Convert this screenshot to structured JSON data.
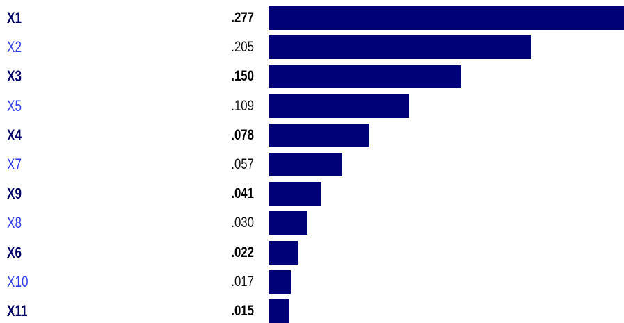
{
  "chart_data": {
    "type": "bar",
    "orientation": "horizontal",
    "categories": [
      "X1",
      "X2",
      "X3",
      "X5",
      "X4",
      "X7",
      "X9",
      "X8",
      "X6",
      "X10",
      "X11"
    ],
    "values": [
      0.277,
      0.205,
      0.15,
      0.109,
      0.078,
      0.057,
      0.041,
      0.03,
      0.022,
      0.017,
      0.015
    ],
    "value_labels": [
      ".277",
      ".205",
      ".150",
      ".109",
      ".078",
      ".057",
      ".041",
      ".030",
      ".022",
      ".017",
      ".015"
    ],
    "title": "",
    "xlabel": "",
    "ylabel": "",
    "xlim": [
      0,
      0.277
    ],
    "grid": false,
    "legend": "none",
    "bar_color": "#000077",
    "label_colors": {
      "bold": "#000066",
      "light": "#2f3ee8"
    }
  }
}
